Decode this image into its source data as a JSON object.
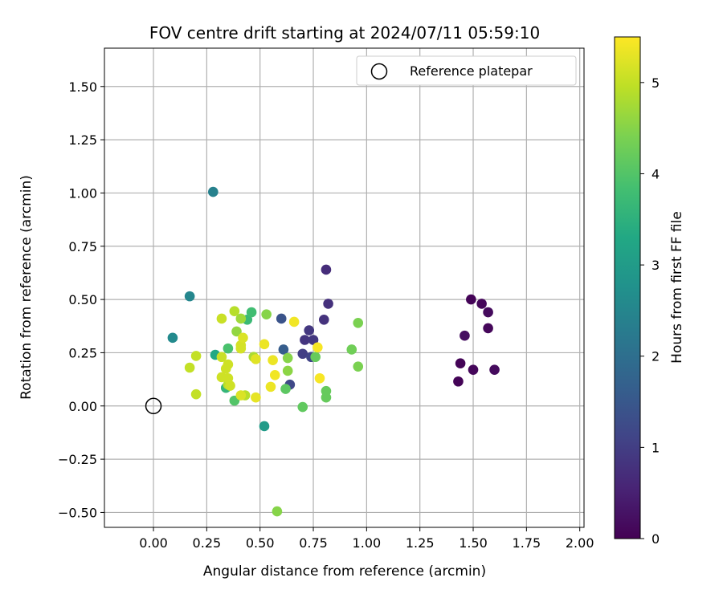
{
  "chart_data": {
    "type": "scatter",
    "title": "FOV centre drift starting at 2024/07/11 05:59:10",
    "xlabel": "Angular distance from reference (arcmin)",
    "ylabel": "Rotation from reference (arcmin)",
    "xlim": [
      -0.23,
      2.02
    ],
    "ylim": [
      -0.57,
      1.68
    ],
    "xticks": [
      0.0,
      0.25,
      0.5,
      0.75,
      1.0,
      1.25,
      1.5,
      1.75,
      2.0
    ],
    "xtick_labels": [
      "0.00",
      "0.25",
      "0.50",
      "0.75",
      "1.00",
      "1.25",
      "1.50",
      "1.75",
      "2.00"
    ],
    "yticks": [
      -0.5,
      -0.25,
      0.0,
      0.25,
      0.5,
      0.75,
      1.0,
      1.25,
      1.5
    ],
    "ytick_labels": [
      "−0.50",
      "−0.25",
      "0.00",
      "0.25",
      "0.50",
      "0.75",
      "1.00",
      "1.25",
      "1.50"
    ],
    "grid": true,
    "legend": {
      "position": "top-right",
      "label": "Reference platepar"
    },
    "reference_point": {
      "x": 0.0,
      "y": 0.0
    },
    "colorbar": {
      "label": "Hours from first FF file",
      "colormap": "viridis",
      "range": [
        0,
        5.5
      ],
      "ticks": [
        0,
        1,
        2,
        3,
        4,
        5
      ],
      "tick_labels": [
        "0",
        "1",
        "2",
        "3",
        "4",
        "5"
      ]
    },
    "points": [
      {
        "x": 1.49,
        "y": 0.5,
        "c": 0.05
      },
      {
        "x": 1.54,
        "y": 0.48,
        "c": 0.1
      },
      {
        "x": 1.57,
        "y": 0.44,
        "c": 0.15
      },
      {
        "x": 1.46,
        "y": 0.33,
        "c": 0.2
      },
      {
        "x": 1.57,
        "y": 0.365,
        "c": 0.1
      },
      {
        "x": 1.44,
        "y": 0.2,
        "c": 0.05
      },
      {
        "x": 1.5,
        "y": 0.17,
        "c": 0.1
      },
      {
        "x": 1.6,
        "y": 0.17,
        "c": 0.15
      },
      {
        "x": 1.43,
        "y": 0.115,
        "c": 0.05
      },
      {
        "x": 0.81,
        "y": 0.64,
        "c": 0.7
      },
      {
        "x": 0.82,
        "y": 0.48,
        "c": 0.75
      },
      {
        "x": 0.8,
        "y": 0.405,
        "c": 0.8
      },
      {
        "x": 0.73,
        "y": 0.355,
        "c": 0.9
      },
      {
        "x": 0.71,
        "y": 0.31,
        "c": 0.85
      },
      {
        "x": 0.75,
        "y": 0.31,
        "c": 0.9
      },
      {
        "x": 0.7,
        "y": 0.245,
        "c": 1.0
      },
      {
        "x": 0.74,
        "y": 0.23,
        "c": 1.1
      },
      {
        "x": 0.64,
        "y": 0.1,
        "c": 1.2
      },
      {
        "x": 0.6,
        "y": 0.41,
        "c": 1.4
      },
      {
        "x": 0.61,
        "y": 0.265,
        "c": 1.6
      },
      {
        "x": 0.28,
        "y": 1.005,
        "c": 2.4
      },
      {
        "x": 0.17,
        "y": 0.515,
        "c": 2.5
      },
      {
        "x": 0.09,
        "y": 0.32,
        "c": 2.6
      },
      {
        "x": 0.52,
        "y": -0.095,
        "c": 3.0
      },
      {
        "x": 0.29,
        "y": 0.24,
        "c": 3.3
      },
      {
        "x": 0.34,
        "y": 0.085,
        "c": 3.6
      },
      {
        "x": 0.44,
        "y": 0.405,
        "c": 3.7
      },
      {
        "x": 0.46,
        "y": 0.44,
        "c": 3.8
      },
      {
        "x": 0.35,
        "y": 0.27,
        "c": 3.9
      },
      {
        "x": 0.38,
        "y": 0.025,
        "c": 4.0
      },
      {
        "x": 0.62,
        "y": 0.08,
        "c": 4.1
      },
      {
        "x": 0.7,
        "y": -0.005,
        "c": 4.15
      },
      {
        "x": 0.76,
        "y": 0.23,
        "c": 4.2
      },
      {
        "x": 0.81,
        "y": 0.07,
        "c": 4.2
      },
      {
        "x": 0.81,
        "y": 0.04,
        "c": 4.2
      },
      {
        "x": 0.93,
        "y": 0.265,
        "c": 4.3
      },
      {
        "x": 0.96,
        "y": 0.185,
        "c": 4.4
      },
      {
        "x": 0.96,
        "y": 0.39,
        "c": 4.4
      },
      {
        "x": 0.53,
        "y": 0.43,
        "c": 4.5
      },
      {
        "x": 0.58,
        "y": -0.495,
        "c": 4.5
      },
      {
        "x": 0.63,
        "y": 0.225,
        "c": 4.5
      },
      {
        "x": 0.63,
        "y": 0.165,
        "c": 4.55
      },
      {
        "x": 0.39,
        "y": 0.35,
        "c": 4.6
      },
      {
        "x": 0.41,
        "y": 0.41,
        "c": 4.7
      },
      {
        "x": 0.47,
        "y": 0.23,
        "c": 4.8
      },
      {
        "x": 0.38,
        "y": 0.445,
        "c": 4.9
      },
      {
        "x": 0.35,
        "y": 0.1,
        "c": 4.9
      },
      {
        "x": 0.43,
        "y": 0.05,
        "c": 4.9
      },
      {
        "x": 0.17,
        "y": 0.18,
        "c": 5.0
      },
      {
        "x": 0.2,
        "y": 0.235,
        "c": 5.0
      },
      {
        "x": 0.2,
        "y": 0.055,
        "c": 5.0
      },
      {
        "x": 0.32,
        "y": 0.41,
        "c": 5.05
      },
      {
        "x": 0.32,
        "y": 0.23,
        "c": 5.05
      },
      {
        "x": 0.34,
        "y": 0.175,
        "c": 5.1
      },
      {
        "x": 0.32,
        "y": 0.135,
        "c": 5.1
      },
      {
        "x": 0.35,
        "y": 0.195,
        "c": 5.1
      },
      {
        "x": 0.36,
        "y": 0.095,
        "c": 5.1
      },
      {
        "x": 0.35,
        "y": 0.13,
        "c": 5.1
      },
      {
        "x": 0.41,
        "y": 0.27,
        "c": 5.15
      },
      {
        "x": 0.41,
        "y": 0.285,
        "c": 5.15
      },
      {
        "x": 0.42,
        "y": 0.32,
        "c": 5.2
      },
      {
        "x": 0.41,
        "y": 0.05,
        "c": 5.2
      },
      {
        "x": 0.48,
        "y": 0.22,
        "c": 5.25
      },
      {
        "x": 0.48,
        "y": 0.04,
        "c": 5.3
      },
      {
        "x": 0.52,
        "y": 0.29,
        "c": 5.35
      },
      {
        "x": 0.55,
        "y": 0.09,
        "c": 5.35
      },
      {
        "x": 0.56,
        "y": 0.215,
        "c": 5.35
      },
      {
        "x": 0.57,
        "y": 0.145,
        "c": 5.4
      },
      {
        "x": 0.66,
        "y": 0.395,
        "c": 5.4
      },
      {
        "x": 0.77,
        "y": 0.275,
        "c": 5.45
      },
      {
        "x": 0.78,
        "y": 0.13,
        "c": 5.45
      }
    ]
  }
}
